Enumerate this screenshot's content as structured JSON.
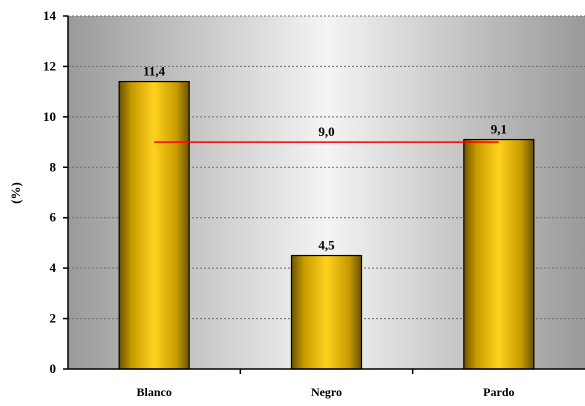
{
  "chart_data": {
    "type": "bar",
    "title": "",
    "xlabel": "",
    "ylabel": "(%)",
    "categories": [
      "Blanco",
      "Negro",
      "Pardo"
    ],
    "values": [
      11.4,
      4.5,
      9.1
    ],
    "value_labels": [
      "11,4",
      "4,5",
      "9,1"
    ],
    "ylim": [
      0,
      14
    ],
    "yticks": [
      0,
      2,
      4,
      6,
      8,
      10,
      12,
      14
    ],
    "ytick_labels": [
      "0",
      "2",
      "4",
      "6",
      "8",
      "10",
      "12",
      "14"
    ],
    "grid": true,
    "reference_line": {
      "value": 9.0,
      "label": "9,0",
      "color": "#ff0000"
    },
    "bar_color": "#f2c200",
    "legend": "none"
  }
}
